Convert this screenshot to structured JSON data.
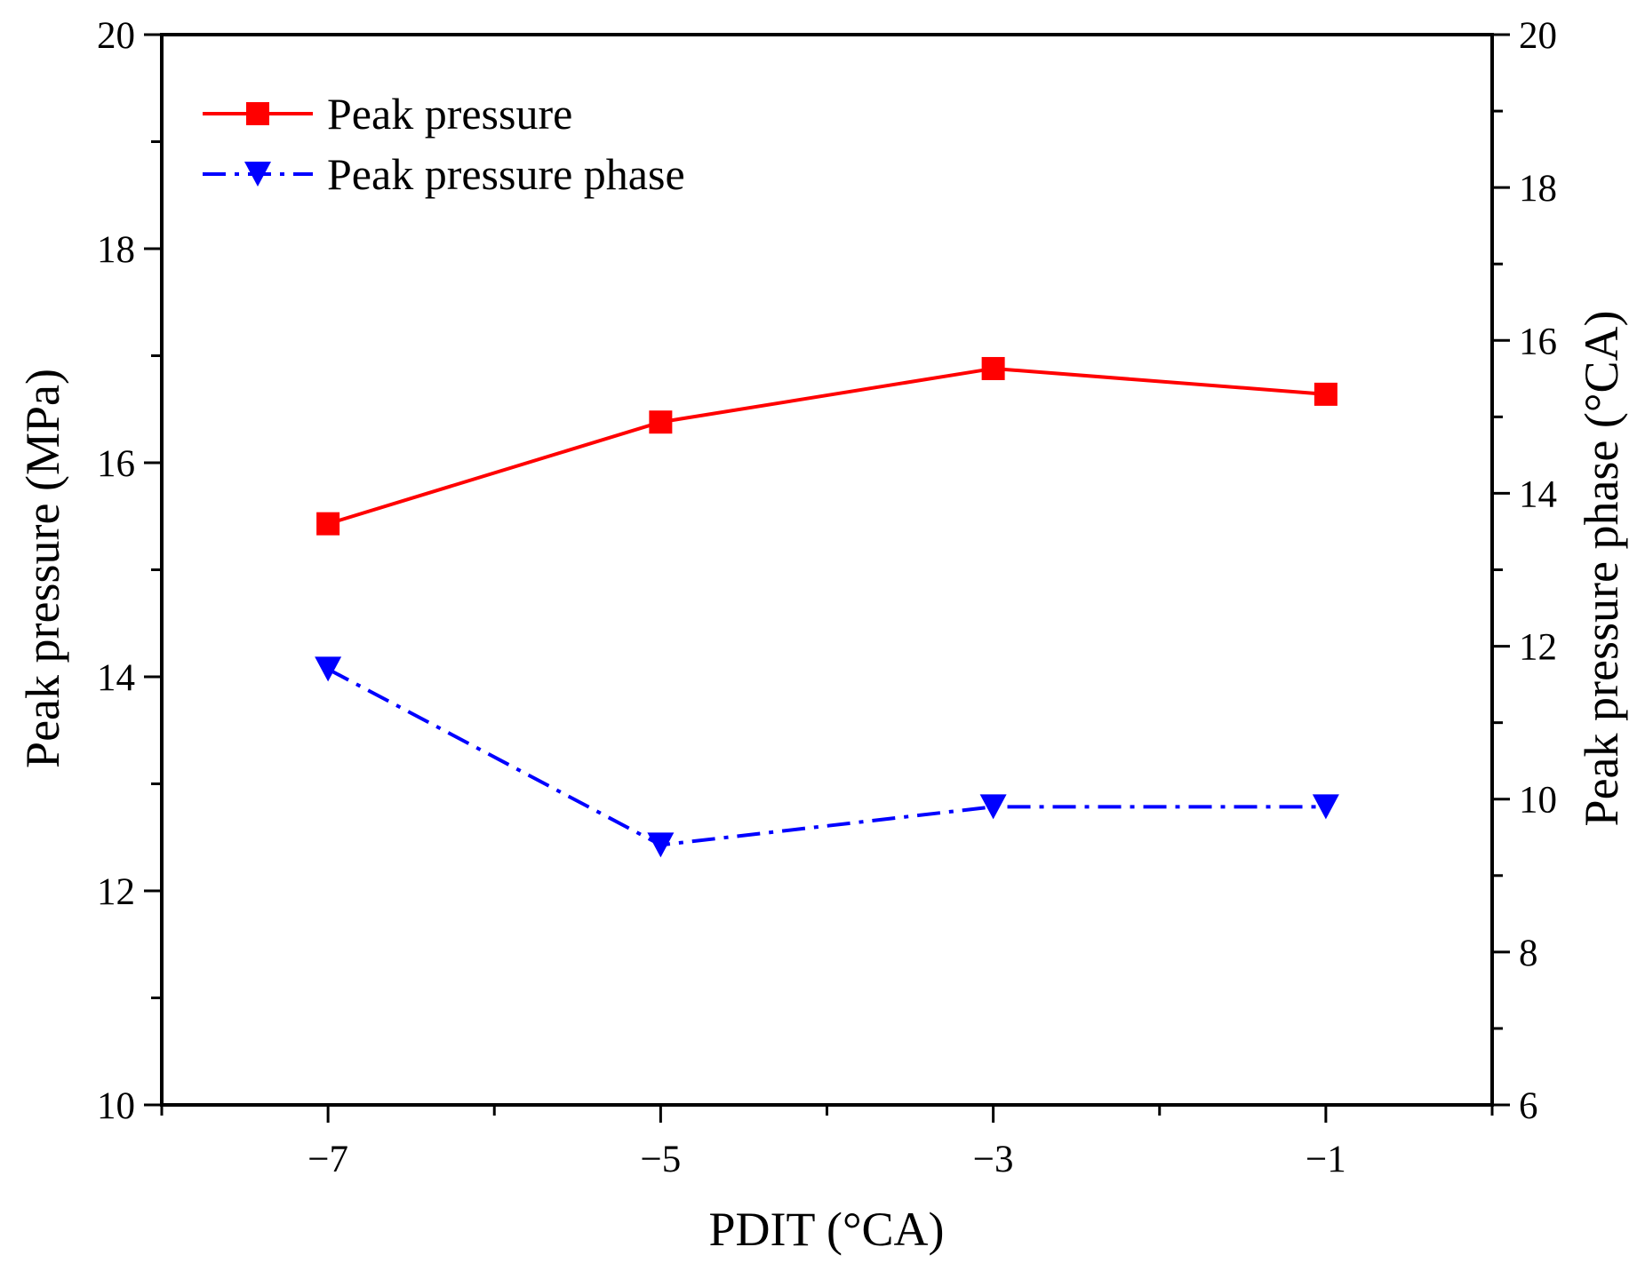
{
  "chart_data": {
    "type": "line",
    "title": "",
    "xlabel": "PDIT (°CA)",
    "ylabel": "Peak pressure (MPa)",
    "y2label": "Peak pressure phase (°CA)",
    "xlim": [
      -8,
      0
    ],
    "ylim": [
      10,
      20
    ],
    "y2lim": [
      6,
      20
    ],
    "x": [
      -7,
      -5,
      -3,
      -1
    ],
    "xticks": [
      -7,
      -5,
      -3,
      -1
    ],
    "xtick_labels": [
      "−7",
      "−5",
      "−3",
      "−1"
    ],
    "yticks": [
      10,
      12,
      14,
      16,
      18,
      20
    ],
    "y2ticks": [
      6,
      8,
      10,
      12,
      14,
      16,
      18,
      20
    ],
    "legend_position": "top-left",
    "series": [
      {
        "name": "Peak pressure",
        "axis": "left",
        "values": [
          15.43,
          16.38,
          16.88,
          16.64
        ],
        "color": "#ff0000",
        "marker": "square",
        "line_style": "solid"
      },
      {
        "name": "Peak pressure phase",
        "axis": "right",
        "values": [
          11.7,
          9.4,
          9.9,
          9.9
        ],
        "color": "#0000ff",
        "marker": "triangle-down",
        "line_style": "dash-dot"
      }
    ]
  }
}
